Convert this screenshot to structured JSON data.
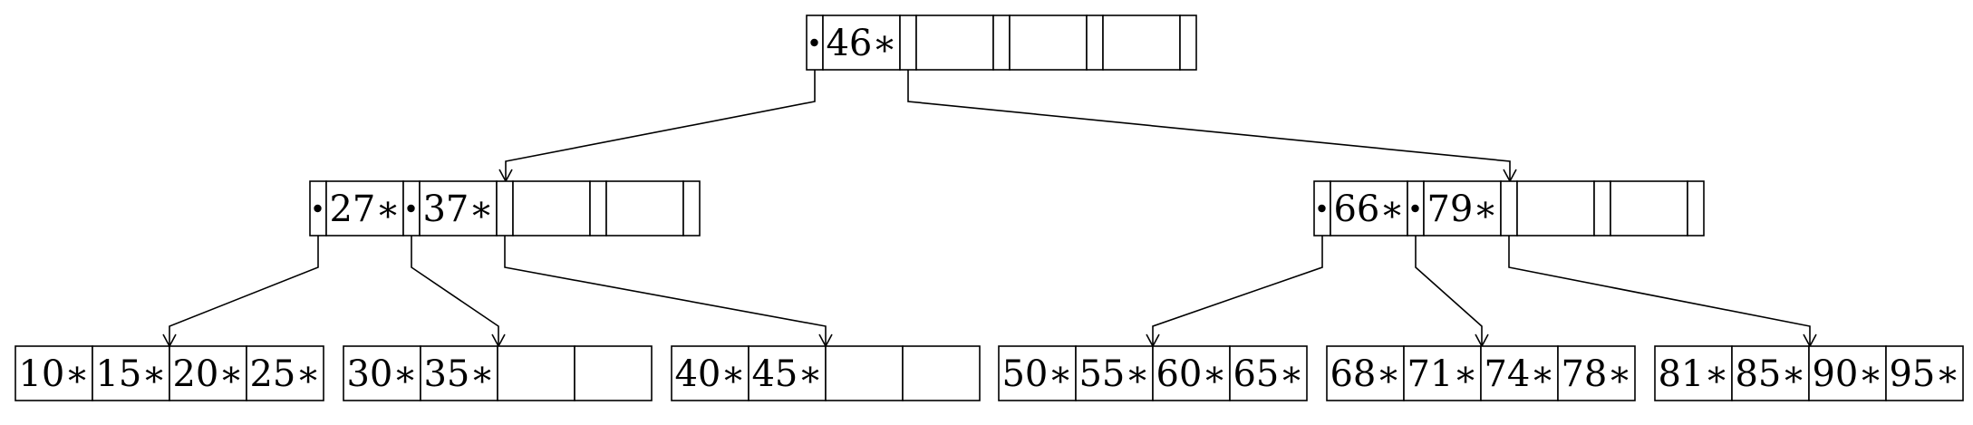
{
  "tree": {
    "root": {
      "keys": [
        "46∗"
      ],
      "empty_slots": 3
    },
    "internal": [
      {
        "keys": [
          "27∗",
          "37∗"
        ],
        "empty_slots": 2
      },
      {
        "keys": [
          "66∗",
          "79∗"
        ],
        "empty_slots": 2
      }
    ],
    "leaves": [
      {
        "entries": [
          "10∗",
          "15∗",
          "20∗",
          "25∗"
        ]
      },
      {
        "entries": [
          "30∗",
          "35∗",
          "",
          ""
        ]
      },
      {
        "entries": [
          "40∗",
          "45∗",
          "",
          ""
        ]
      },
      {
        "entries": [
          "50∗",
          "55∗",
          "60∗",
          "65∗"
        ]
      },
      {
        "entries": [
          "68∗",
          "71∗",
          "74∗",
          "78∗"
        ]
      },
      {
        "entries": [
          "81∗",
          "85∗",
          "90∗",
          "95∗"
        ]
      }
    ]
  }
}
